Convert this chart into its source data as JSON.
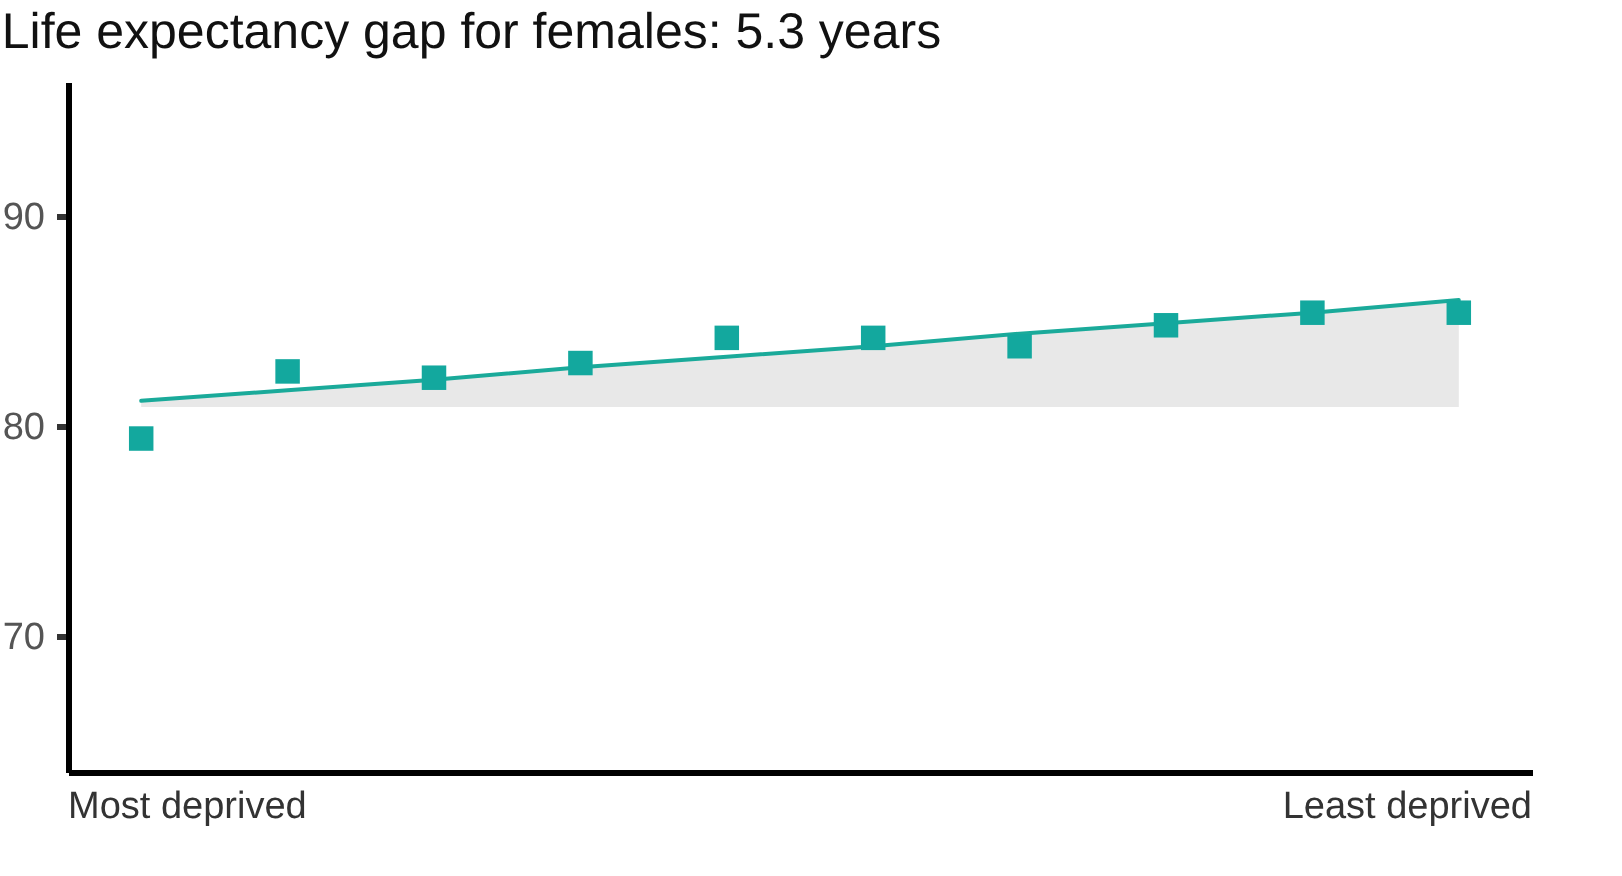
{
  "chart_data": {
    "type": "scatter",
    "title": "Life expectancy gap for females: 5.3 years",
    "categories": [
      null,
      null,
      null,
      null,
      null,
      null,
      null,
      null,
      null,
      null
    ],
    "annotations": [
      "Most deprived",
      "Least deprived"
    ],
    "ylim": [
      63.5,
      96.4
    ],
    "yticks": [
      70,
      80,
      90
    ],
    "marker": "square",
    "series": [
      {
        "color": "#13a89e",
        "values": [
          79.4,
          82.6,
          82.3,
          83.0,
          84.2,
          84.2,
          83.8,
          84.8,
          85.4,
          85.4
        ]
      },
      {
        "type": "line",
        "marker": "none",
        "color": "#1aaa9a",
        "values": [
          81.2,
          81.7,
          82.2,
          82.8,
          83.3,
          83.8,
          84.4,
          84.9,
          85.4,
          86.0
        ],
        "lower": [
          80.9,
          80.9,
          80.9,
          80.9,
          80.9,
          80.9,
          80.9,
          80.9,
          80.9,
          80.9
        ],
        "upper": [
          81.2,
          81.7,
          82.2,
          82.8,
          83.3,
          83.8,
          84.4,
          84.9,
          85.4,
          86.0
        ]
      }
    ]
  }
}
